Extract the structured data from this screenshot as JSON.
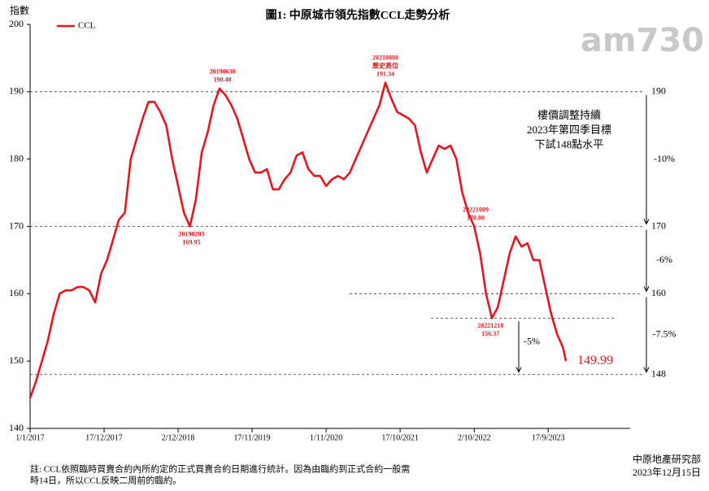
{
  "chart_data": {
    "type": "line",
    "title": "圖1: 中原城市領先指數CCL走勢分析",
    "y_axis_title": "指數",
    "logo": "am730",
    "x": [
      "2017-01-01",
      "2017-01-29",
      "2017-02-26",
      "2017-03-26",
      "2017-04-23",
      "2017-05-21",
      "2017-06-18",
      "2017-07-16",
      "2017-08-13",
      "2017-09-10",
      "2017-10-08",
      "2017-11-05",
      "2017-12-03",
      "2017-12-31",
      "2018-01-28",
      "2018-02-25",
      "2018-03-25",
      "2018-04-22",
      "2018-05-20",
      "2018-06-17",
      "2018-07-15",
      "2018-08-12",
      "2018-09-09",
      "2018-10-07",
      "2018-11-04",
      "2018-12-02",
      "2018-12-30",
      "2019-01-27",
      "2019-02-24",
      "2019-03-24",
      "2019-04-21",
      "2019-05-19",
      "2019-06-16",
      "2019-07-14",
      "2019-08-11",
      "2019-09-08",
      "2019-10-06",
      "2019-11-03",
      "2019-12-01",
      "2019-12-29",
      "2020-01-26",
      "2020-02-23",
      "2020-03-22",
      "2020-04-19",
      "2020-05-17",
      "2020-06-14",
      "2020-07-12",
      "2020-08-09",
      "2020-09-06",
      "2020-10-04",
      "2020-11-01",
      "2020-11-29",
      "2020-12-27",
      "2021-01-24",
      "2021-02-21",
      "2021-03-21",
      "2021-04-18",
      "2021-05-16",
      "2021-06-13",
      "2021-07-11",
      "2021-08-08",
      "2021-09-05",
      "2021-10-03",
      "2021-10-31",
      "2021-11-28",
      "2021-12-26",
      "2022-01-23",
      "2022-02-20",
      "2022-03-20",
      "2022-04-17",
      "2022-05-15",
      "2022-06-12",
      "2022-07-10",
      "2022-08-07",
      "2022-09-04",
      "2022-10-02",
      "2022-10-30",
      "2022-11-27",
      "2022-12-25",
      "2023-01-22",
      "2023-02-19",
      "2023-03-19",
      "2023-04-16",
      "2023-05-14",
      "2023-06-11",
      "2023-07-09",
      "2023-08-06",
      "2023-09-03",
      "2023-10-01",
      "2023-10-29",
      "2023-11-26",
      "2023-12-10"
    ],
    "series": [
      {
        "name": "CCL",
        "color": "#e8141b",
        "values": [
          144.5,
          147,
          150,
          153,
          157,
          160,
          160.5,
          160.5,
          161,
          161,
          160.5,
          158.7,
          163,
          165,
          168,
          171,
          172,
          180,
          183,
          186,
          188.5,
          188.5,
          187,
          185,
          180,
          176,
          172,
          170,
          174,
          181,
          184,
          188,
          190.48,
          189.5,
          188,
          186,
          183,
          180,
          178,
          178,
          178.5,
          175.5,
          175.5,
          177,
          178,
          180.5,
          181,
          178.5,
          177.5,
          177.5,
          176,
          177,
          177.5,
          177,
          178,
          180,
          182,
          184,
          186,
          188,
          191.34,
          189,
          187,
          186.5,
          186,
          185,
          181,
          178,
          180,
          182,
          181.5,
          182,
          180,
          175,
          172,
          170,
          166,
          160,
          156.37,
          158,
          162,
          166,
          168.5,
          167,
          167.5,
          165,
          165,
          161,
          157,
          154,
          152,
          149.99
        ]
      }
    ],
    "xlim": [
      "2017-01-01",
      "2024-08-31"
    ],
    "xticks": [
      {
        "value": "2017-01-01",
        "label": "1/1/2017"
      },
      {
        "value": "2017-12-17",
        "label": "17/12/2017"
      },
      {
        "value": "2018-12-02",
        "label": "2/12/2018"
      },
      {
        "value": "2019-11-17",
        "label": "17/11/2019"
      },
      {
        "value": "2020-11-01",
        "label": "1/11/2020"
      },
      {
        "value": "2021-10-17",
        "label": "17/10/2021"
      },
      {
        "value": "2022-10-02",
        "label": "2/10/2022"
      },
      {
        "value": "2023-09-17",
        "label": "17/9/2023"
      }
    ],
    "ylim": [
      140,
      200
    ],
    "yticks": [
      140,
      150,
      160,
      170,
      180,
      190,
      200
    ],
    "point_annotations": [
      {
        "date": "20190630",
        "label": "190.48",
        "value": 190.48,
        "placement": "above"
      },
      {
        "date": "20190203",
        "label": "169.95",
        "value": 169.95,
        "placement": "below"
      },
      {
        "date": "20210808",
        "note": "歷史高位",
        "label": "191.34",
        "value": 191.34,
        "placement": "above"
      },
      {
        "date": "20221009",
        "label": "170.00",
        "value": 170,
        "placement": "above"
      },
      {
        "date": "20221218",
        "label": "156.37",
        "value": 156.37,
        "placement": "below"
      }
    ],
    "reference_lines": [
      190,
      170,
      160,
      148
    ],
    "change_arrows": [
      {
        "from": 190,
        "to": 170,
        "label": "-10%"
      },
      {
        "from": 170,
        "to": 160,
        "label": "-6%"
      },
      {
        "from": 160,
        "to": 148,
        "label": "-7.5%"
      },
      {
        "from": 156.37,
        "to": 148,
        "label": "-5%"
      }
    ],
    "outlook": [
      "樓價調整持續",
      "2023年第四季目標",
      "下試148點水平"
    ],
    "note": [
      "註: CCL依照臨時買賣合約內所約定的正式買賣合約日期進行統計。因為由臨約到正式合約一般需",
      "時14日，所以CCL反映二周前的臨約。"
    ],
    "source": [
      "中原地產研究部",
      "2023年12月15日"
    ]
  }
}
